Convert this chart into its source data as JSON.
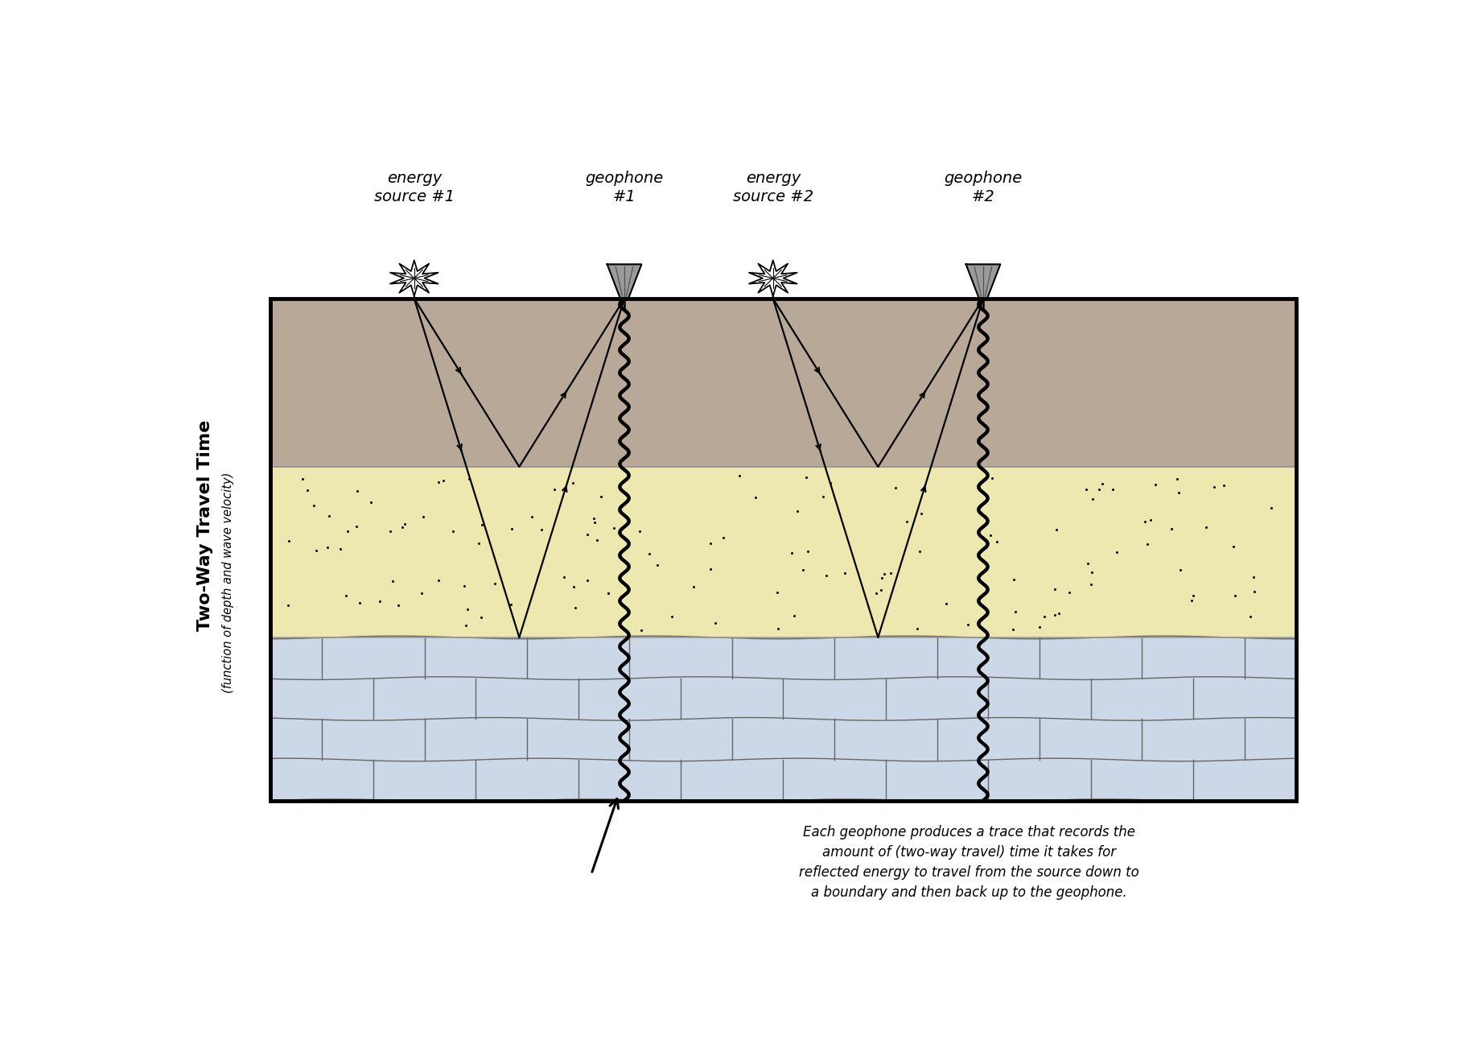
{
  "fig_width": 18.37,
  "fig_height": 13.17,
  "bg_color": "#ffffff",
  "layer1_color": "#b8a898",
  "layer2_color": "#ede8b0",
  "layer3_color": "#ccd8e8",
  "title_ylabel": "Two-Way Travel Time",
  "subtitle_ylabel": "(function of depth and wave velocity)",
  "annotation_text_line1": "Each geophone produces a trace that records the",
  "annotation_text_line2": "amount of (two-way travel) time it takes for",
  "annotation_text_line3": "reflected energy to travel from the source down to",
  "annotation_text_line4": "a boundary and then back up to the geophone.",
  "label_source1": "energy\nsource #1",
  "label_source2": "energy\nsource #2",
  "label_geo1": "geophone\n#1",
  "label_geo2": "geophone\n#2"
}
